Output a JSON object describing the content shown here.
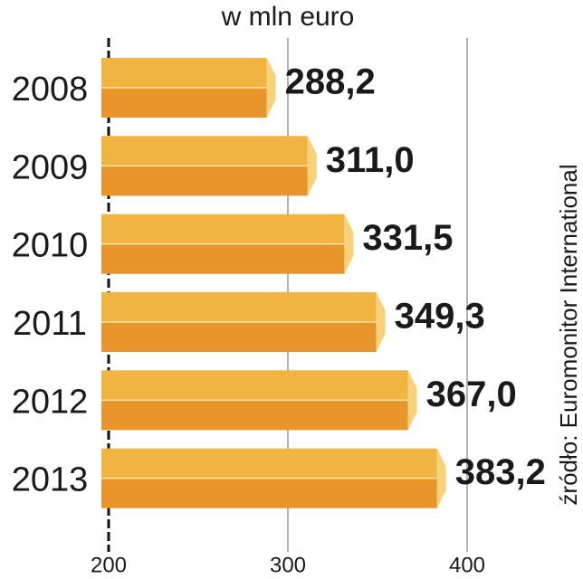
{
  "chart_data": {
    "type": "bar",
    "orientation": "horizontal",
    "title": "w mln euro",
    "source": "źródło: Euromonitor International",
    "categories": [
      "2008",
      "2009",
      "2010",
      "2011",
      "2012",
      "2013"
    ],
    "values": [
      288.2,
      311.0,
      331.5,
      349.3,
      367.0,
      383.2
    ],
    "value_labels": [
      "288,2",
      "311,0",
      "331,5",
      "349,3",
      "367,0",
      "383,2"
    ],
    "color": "#f2b441",
    "xlim": [
      200,
      400
    ],
    "xticks": [
      200,
      300,
      400
    ],
    "grid": true
  }
}
